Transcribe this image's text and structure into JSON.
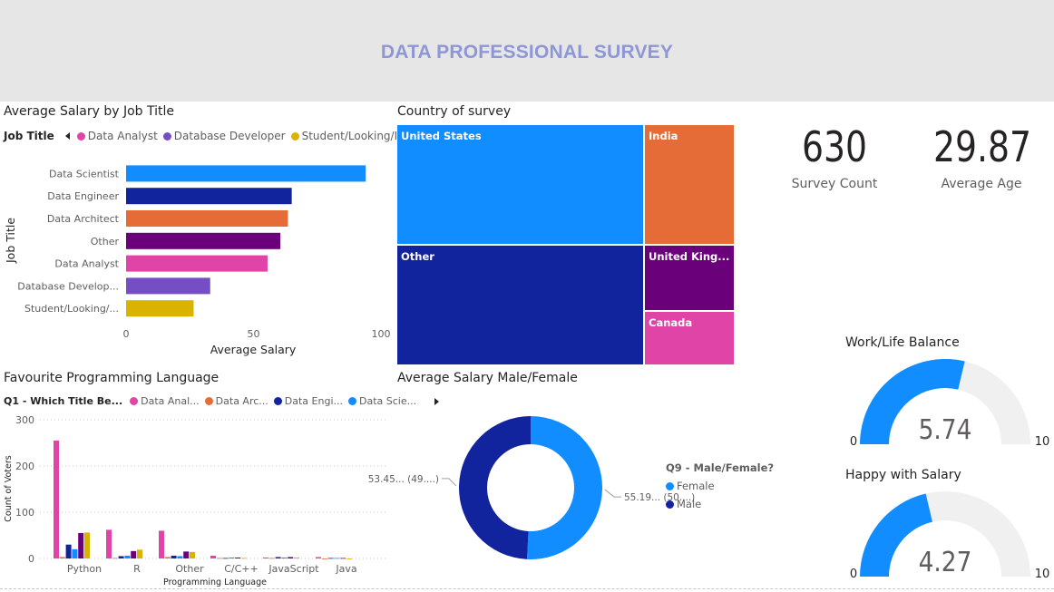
{
  "banner": {
    "title": "DATA PROFESSIONAL SURVEY"
  },
  "salary_by_job": {
    "title": "Average Salary by Job Title",
    "legend_title": "Job Title",
    "legend": [
      {
        "label": "Data Analyst",
        "color": "#e044a7"
      },
      {
        "label": "Database Developer",
        "color": "#744ec2"
      },
      {
        "label": "Student/Looking/No...",
        "color": "#d9b300"
      }
    ]
  },
  "languages": {
    "title": "Favourite Programming Language",
    "legend_title": "Q1 - Which Title Be...",
    "legend": [
      {
        "label": "Data Anal...",
        "color": "#e044a7"
      },
      {
        "label": "Data Arc...",
        "color": "#e66c37"
      },
      {
        "label": "Data Engi...",
        "color": "#12239e"
      },
      {
        "label": "Data Scie...",
        "color": "#118dff"
      }
    ]
  },
  "country": {
    "title": "Country of survey"
  },
  "gender": {
    "title": "Average Salary Male/Female",
    "legend_title": "Q9 - Male/Female?",
    "legend": [
      {
        "label": "Female",
        "color": "#118dff"
      },
      {
        "label": "Male",
        "color": "#12239e"
      }
    ]
  },
  "kpis": {
    "survey_count": {
      "value": "630",
      "label": "Survey Count"
    },
    "average_age": {
      "value": "29.87",
      "label": "Average Age"
    }
  },
  "gauges": {
    "work_life": {
      "title": "Work/Life Balance",
      "value": "5.74",
      "min": "0",
      "max": "10"
    },
    "happy_salary": {
      "title": "Happy with Salary",
      "value": "4.27",
      "min": "0",
      "max": "10"
    }
  },
  "chart_data": [
    {
      "type": "bar",
      "orientation": "horizontal",
      "title": "Average Salary by Job Title",
      "xlabel": "Average Salary",
      "ylabel": "Job Title",
      "xlim": [
        0,
        100
      ],
      "xticks": [
        "0",
        "50",
        "100"
      ],
      "categories": [
        "Data Scientist",
        "Data Engineer",
        "Data Architect",
        "Other",
        "Data Analyst",
        "Database Develop...",
        "Student/Looking/..."
      ],
      "values": [
        94,
        65,
        63.5,
        60.5,
        55.5,
        33,
        26.5
      ],
      "colors": [
        "#118dff",
        "#12239e",
        "#e66c37",
        "#6b007b",
        "#e044a7",
        "#744ec2",
        "#d9b300"
      ]
    },
    {
      "type": "bar",
      "title": "Favourite Programming Language",
      "xlabel": "Programming Language",
      "ylabel": "Count of Voters",
      "ylim": [
        0,
        300
      ],
      "yticks": [
        "0",
        "100",
        "200",
        "300"
      ],
      "grid": true,
      "categories": [
        "Python",
        "R",
        "Other",
        "C/C++",
        "JavaScript",
        "Java"
      ],
      "series": [
        {
          "name": "Data Anal...",
          "color": "#e044a7",
          "values": [
            255,
            62,
            60,
            6,
            2,
            3
          ]
        },
        {
          "name": "Data Arc...",
          "color": "#e66c37",
          "values": [
            3,
            1,
            3,
            1,
            1,
            0
          ]
        },
        {
          "name": "Data Engi...",
          "color": "#12239e",
          "values": [
            30,
            5,
            6,
            1,
            3,
            1
          ]
        },
        {
          "name": "Data Scie...",
          "color": "#118dff",
          "values": [
            20,
            6,
            5,
            2,
            2,
            1
          ]
        },
        {
          "color": "#6b007b",
          "values": [
            55,
            16,
            15,
            2,
            3,
            1
          ]
        },
        {
          "color": "#d9b300",
          "values": [
            56,
            19,
            14,
            1,
            2,
            0
          ]
        }
      ]
    },
    {
      "type": "treemap",
      "title": "Country of survey",
      "labels": [
        "United States",
        "Other",
        "India",
        "United King...",
        "Canada"
      ],
      "values": [
        262,
        263,
        96,
        53,
        43
      ],
      "colors": [
        "#118dff",
        "#12239e",
        "#e66c37",
        "#6b007b",
        "#e044a7"
      ]
    },
    {
      "type": "pie",
      "style": "donut",
      "title": "Average Salary Male/Female",
      "labels": [
        "Female",
        "Male"
      ],
      "values": [
        55.19,
        53.45
      ],
      "data_labels": [
        "55.19... (50....)",
        "53.45... (49....)"
      ],
      "colors": [
        "#118dff",
        "#12239e"
      ]
    }
  ]
}
